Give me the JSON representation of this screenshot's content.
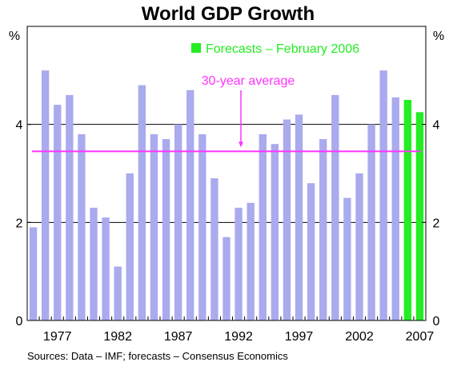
{
  "chart_data": {
    "type": "bar",
    "title": "World GDP Growth",
    "y_unit_left": "%",
    "y_unit_right": "%",
    "source": "Sources: Data – IMF; forecasts – Consensus Economics",
    "x": [
      1975,
      1976,
      1977,
      1978,
      1979,
      1980,
      1981,
      1982,
      1983,
      1984,
      1985,
      1986,
      1987,
      1988,
      1989,
      1990,
      1991,
      1992,
      1993,
      1994,
      1995,
      1996,
      1997,
      1998,
      1999,
      2000,
      2001,
      2002,
      2003,
      2004,
      2005,
      2006,
      2007
    ],
    "values": [
      1.9,
      5.1,
      4.4,
      4.6,
      3.8,
      2.3,
      2.1,
      1.1,
      3.0,
      4.8,
      3.8,
      3.7,
      4.0,
      4.7,
      3.8,
      2.9,
      1.7,
      2.3,
      2.4,
      3.8,
      3.6,
      4.1,
      4.2,
      2.8,
      3.7,
      4.6,
      2.5,
      3.0,
      4.0,
      5.1,
      4.55,
      4.5,
      4.25
    ],
    "forecast_from": 2006,
    "x_tick_labels": [
      "1977",
      "1982",
      "1987",
      "1992",
      "1997",
      "2002",
      "2007"
    ],
    "x_tick_values": [
      1977,
      1982,
      1987,
      1992,
      1997,
      2002,
      2007
    ],
    "y_ticks": [
      "0",
      "2",
      "4"
    ],
    "y_tick_values": [
      0,
      2,
      4
    ],
    "ylim": [
      0,
      6
    ],
    "grid": "horizontal",
    "average": {
      "value": 3.45,
      "label": "30-year average",
      "color": "#ff33ff"
    },
    "legend": {
      "label": "Forecasts – February 2006",
      "color": "#22ee22",
      "placement": "top-right"
    },
    "colors": {
      "actual": "#aaaaee",
      "forecast": "#22ee22"
    }
  }
}
